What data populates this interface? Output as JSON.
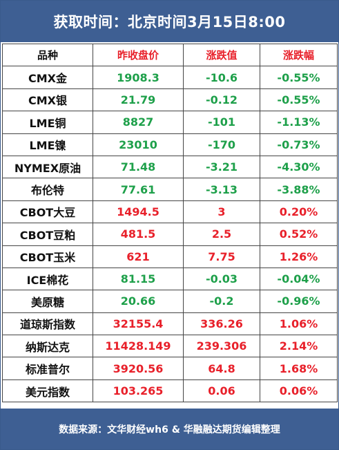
{
  "title": "获取时间：北京时间3月15日8:00",
  "headers": [
    "品种",
    "昨收盘价",
    "涨跌值",
    "涨跌幅"
  ],
  "colors": {
    "header_bg": "#3e5f93",
    "up": "#e8202a",
    "down": "#1ea04a"
  },
  "rows": [
    {
      "name": "CMX金",
      "close": "1908.3",
      "change": "-10.6",
      "pct": "-0.55%",
      "dir": "down"
    },
    {
      "name": "CMX银",
      "close": "21.79",
      "change": "-0.12",
      "pct": "-0.55%",
      "dir": "down"
    },
    {
      "name": "LME铜",
      "close": "8827",
      "change": "-101",
      "pct": "-1.13%",
      "dir": "down"
    },
    {
      "name": "LME镍",
      "close": "23010",
      "change": "-170",
      "pct": "-0.73%",
      "dir": "down"
    },
    {
      "name": "NYMEX原油",
      "close": "71.48",
      "change": "-3.21",
      "pct": "-4.30%",
      "dir": "down"
    },
    {
      "name": "布伦特",
      "close": "77.61",
      "change": "-3.13",
      "pct": "-3.88%",
      "dir": "down"
    },
    {
      "name": "CBOT大豆",
      "close": "1494.5",
      "change": "3",
      "pct": "0.20%",
      "dir": "up"
    },
    {
      "name": "CBOT豆粕",
      "close": "481.5",
      "change": "2.5",
      "pct": "0.52%",
      "dir": "up"
    },
    {
      "name": "CBOT玉米",
      "close": "621",
      "change": "7.75",
      "pct": "1.26%",
      "dir": "up"
    },
    {
      "name": "ICE棉花",
      "close": "81.15",
      "change": "-0.03",
      "pct": "-0.04%",
      "dir": "down"
    },
    {
      "name": "美原糖",
      "close": "20.66",
      "change": "-0.2",
      "pct": "-0.96%",
      "dir": "down"
    },
    {
      "name": "道琼斯指数",
      "close": "32155.4",
      "change": "336.26",
      "pct": "1.06%",
      "dir": "up"
    },
    {
      "name": "纳斯达克",
      "close": "11428.149",
      "change": "239.306",
      "pct": "2.14%",
      "dir": "up"
    },
    {
      "name": "标准普尔",
      "close": "3920.56",
      "change": "64.8",
      "pct": "1.68%",
      "dir": "up"
    },
    {
      "name": "美元指数",
      "close": "103.265",
      "change": "0.06",
      "pct": "0.06%",
      "dir": "up"
    }
  ],
  "footer": "数据来源：文华财经wh6 & 华融融达期货编辑整理"
}
